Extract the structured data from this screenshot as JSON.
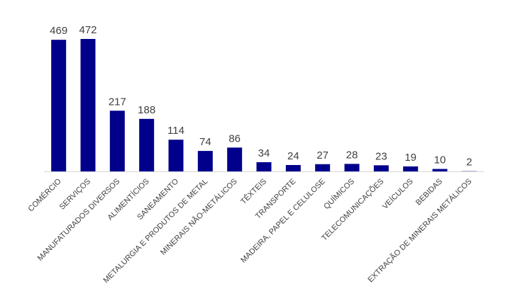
{
  "chart_data": {
    "type": "bar",
    "title": "",
    "xlabel": "",
    "ylabel": "",
    "categories": [
      "COMÉRCIO",
      "SERVIÇOS",
      "MANUFATURADOS DIVERSOS",
      "ALIMENTÍCIOS",
      "SANEAMENTO",
      "METALURGIA E PRODUTOS DE METAL",
      "MINERAIS NÃO-METÁLICOS",
      "TÊXTEIS",
      "TRANSPORTE",
      "MADEIRA, PAPEL E CELULOSE",
      "QUÍMICOS",
      "TELECOMUNICAÇÕES",
      "VEÍCULOS",
      "BEBIDAS",
      "EXTRAÇÃO DE MINERAIS METÁLICOS"
    ],
    "values": [
      469,
      472,
      217,
      188,
      114,
      74,
      86,
      34,
      24,
      27,
      28,
      23,
      19,
      10,
      2
    ],
    "ylim": [
      0,
      472
    ],
    "grid": false,
    "legend": "none",
    "bar_color": "#00008B",
    "axis_color": "#D9D9D9",
    "label_color": "#404040"
  }
}
